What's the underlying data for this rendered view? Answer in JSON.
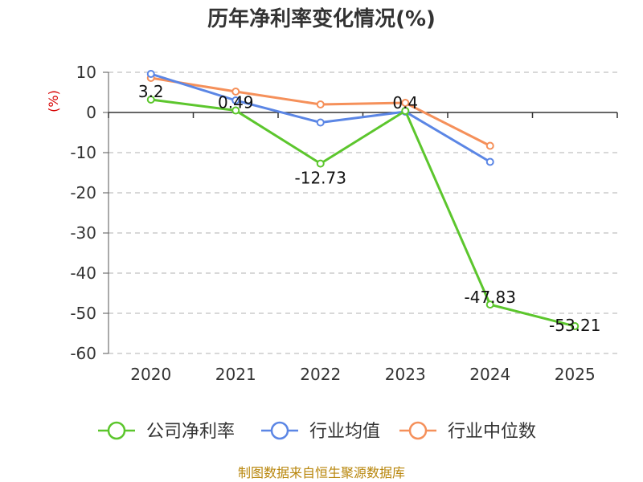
{
  "chart_data": {
    "type": "line",
    "title": "历年净利率变化情况(%)",
    "ylabel": "(%)",
    "xlabel": "",
    "categories": [
      "2020",
      "2021",
      "2022",
      "2023",
      "2024",
      "2025"
    ],
    "ylim": [
      -60,
      10
    ],
    "yticks": [
      10,
      0,
      -10,
      -20,
      -30,
      -40,
      -50,
      -60
    ],
    "grid": true,
    "legend_position": "bottom",
    "series": [
      {
        "name": "公司净利率",
        "color": "#5cc62d",
        "values": [
          3.2,
          0.49,
          -12.73,
          0.4,
          -47.83,
          -53.21
        ],
        "labels": [
          "3.2",
          "0.49",
          "-12.73",
          "0.4",
          "-47.83",
          "-53.21"
        ]
      },
      {
        "name": "行业均值",
        "color": "#5b86e5",
        "values": [
          9.6,
          3.0,
          -2.5,
          0.2,
          -12.3,
          null
        ]
      },
      {
        "name": "行业中位数",
        "color": "#f5905a",
        "values": [
          8.6,
          5.2,
          2.0,
          2.4,
          -8.3,
          null
        ]
      }
    ]
  },
  "source": "制图数据来自恒生聚源数据库"
}
